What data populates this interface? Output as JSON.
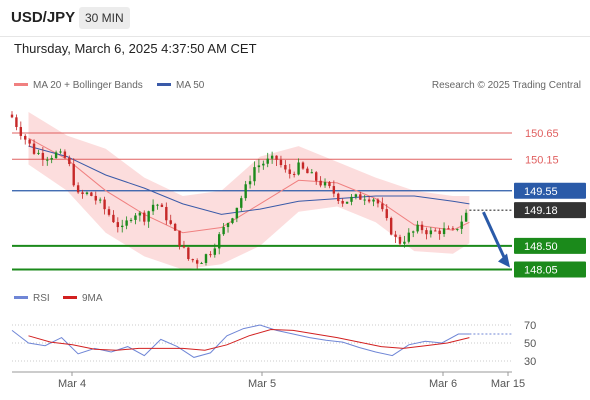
{
  "header": {
    "symbol": "USD/JPY",
    "timeframe": "30 MIN"
  },
  "timestamp": "Thursday, March 6, 2025 4:37:50 AM CET",
  "legend": {
    "ma20_label": "MA 20 + Bollinger Bands",
    "ma50_label": "MA 50",
    "credit": "Research © 2025 Trading Central",
    "rsi_label": "RSI",
    "rsi_ma_label": "9MA"
  },
  "colors": {
    "ma20": "#f08080",
    "ma50": "#3a5aa8",
    "band_fill": "#fbd5d5",
    "resistance": "#e06060",
    "support": "#1b8a1b",
    "pivot": "#2a5aa8",
    "last": "#333333",
    "rsi": "#6f86d6",
    "rsi_ma": "#d22020",
    "candle_up": "#1b8a1b",
    "candle_down": "#c62828"
  },
  "chart_data": [
    {
      "type": "candlestick",
      "title": "USD/JPY 30 MIN",
      "x_ticks": [
        "Mar 4",
        "Mar 5",
        "Mar 6",
        "Mar 15"
      ],
      "y_range": [
        147.85,
        151.05
      ],
      "levels": [
        {
          "value": 150.65,
          "label": "150.65",
          "kind": "resistance"
        },
        {
          "value": 150.15,
          "label": "150.15",
          "kind": "resistance"
        },
        {
          "value": 149.55,
          "label": "149.55",
          "kind": "pivot"
        },
        {
          "value": 149.18,
          "label": "149.18",
          "kind": "last"
        },
        {
          "value": 148.5,
          "label": "148.50",
          "kind": "support"
        },
        {
          "value": 148.05,
          "label": "148.05",
          "kind": "support"
        }
      ],
      "close_path": [
        [
          0,
          150.95
        ],
        [
          4,
          150.6
        ],
        [
          8,
          150.3
        ],
        [
          12,
          150.2
        ],
        [
          16,
          150.25
        ],
        [
          20,
          150.15
        ],
        [
          24,
          149.45
        ],
        [
          28,
          149.5
        ],
        [
          32,
          149.3
        ],
        [
          36,
          149.05
        ],
        [
          40,
          148.8
        ],
        [
          44,
          149.15
        ],
        [
          48,
          149.05
        ],
        [
          52,
          149.35
        ],
        [
          56,
          149.05
        ],
        [
          60,
          148.65
        ],
        [
          64,
          148.25
        ],
        [
          68,
          148.2
        ],
        [
          72,
          148.4
        ],
        [
          76,
          148.75
        ],
        [
          80,
          149.1
        ],
        [
          84,
          149.5
        ],
        [
          88,
          150.0
        ],
        [
          92,
          150.1
        ],
        [
          96,
          150.15
        ],
        [
          100,
          149.85
        ],
        [
          104,
          150.0
        ],
        [
          108,
          149.85
        ],
        [
          112,
          149.7
        ],
        [
          116,
          149.55
        ],
        [
          120,
          149.35
        ],
        [
          124,
          149.4
        ],
        [
          128,
          149.45
        ],
        [
          132,
          149.4
        ],
        [
          136,
          148.95
        ],
        [
          140,
          148.55
        ],
        [
          144,
          148.7
        ],
        [
          148,
          148.85
        ],
        [
          152,
          148.75
        ],
        [
          156,
          148.8
        ],
        [
          160,
          148.75
        ],
        [
          164,
          149.05
        ],
        [
          166,
          149.2
        ]
      ],
      "ma20_path": [
        [
          6,
          150.55
        ],
        [
          20,
          150.15
        ],
        [
          34,
          149.55
        ],
        [
          48,
          149.1
        ],
        [
          62,
          148.75
        ],
        [
          76,
          148.85
        ],
        [
          90,
          149.3
        ],
        [
          104,
          149.75
        ],
        [
          118,
          149.7
        ],
        [
          132,
          149.4
        ],
        [
          146,
          148.9
        ],
        [
          160,
          148.8
        ],
        [
          166,
          148.95
        ]
      ],
      "bollinger_upper": [
        [
          6,
          151.05
        ],
        [
          20,
          150.6
        ],
        [
          34,
          150.35
        ],
        [
          48,
          149.8
        ],
        [
          62,
          149.45
        ],
        [
          76,
          149.55
        ],
        [
          90,
          150.2
        ],
        [
          104,
          150.4
        ],
        [
          118,
          150.1
        ],
        [
          132,
          149.8
        ],
        [
          146,
          149.55
        ],
        [
          160,
          149.45
        ],
        [
          166,
          149.45
        ]
      ],
      "bollinger_lower": [
        [
          6,
          150.05
        ],
        [
          20,
          149.55
        ],
        [
          34,
          148.75
        ],
        [
          48,
          148.3
        ],
        [
          62,
          148.05
        ],
        [
          76,
          148.15
        ],
        [
          90,
          148.5
        ],
        [
          104,
          149.15
        ],
        [
          118,
          149.25
        ],
        [
          132,
          148.95
        ],
        [
          146,
          148.4
        ],
        [
          160,
          148.35
        ],
        [
          166,
          148.55
        ]
      ],
      "ma50_path": [
        [
          6,
          150.4
        ],
        [
          20,
          150.2
        ],
        [
          34,
          149.85
        ],
        [
          48,
          149.6
        ],
        [
          62,
          149.3
        ],
        [
          76,
          149.1
        ],
        [
          90,
          149.2
        ],
        [
          104,
          149.35
        ],
        [
          118,
          149.4
        ],
        [
          132,
          149.45
        ],
        [
          146,
          149.45
        ],
        [
          160,
          149.35
        ],
        [
          166,
          149.3
        ]
      ],
      "projection": [
        [
          166,
          149.18
        ],
        [
          180,
          148.05
        ]
      ]
    },
    {
      "type": "line",
      "title": "RSI",
      "y_range": [
        20,
        80
      ],
      "y_ticks": [
        70,
        50,
        30
      ],
      "series": [
        {
          "name": "RSI",
          "values": [
            [
              0,
              64
            ],
            [
              6,
              50
            ],
            [
              12,
              47
            ],
            [
              18,
              56
            ],
            [
              24,
              38
            ],
            [
              30,
              44
            ],
            [
              36,
              40
            ],
            [
              42,
              46
            ],
            [
              48,
              36
            ],
            [
              54,
              54
            ],
            [
              60,
              46
            ],
            [
              66,
              34
            ],
            [
              72,
              39
            ],
            [
              78,
              58
            ],
            [
              84,
              66
            ],
            [
              90,
              70
            ],
            [
              96,
              64
            ],
            [
              102,
              60
            ],
            [
              108,
              56
            ],
            [
              114,
              53
            ],
            [
              120,
              51
            ],
            [
              126,
              45
            ],
            [
              132,
              40
            ],
            [
              138,
              36
            ],
            [
              144,
              48
            ],
            [
              150,
              52
            ],
            [
              156,
              50
            ],
            [
              162,
              60
            ],
            [
              166,
              60
            ]
          ]
        },
        {
          "name": "9MA",
          "values": [
            [
              6,
              58
            ],
            [
              14,
              51
            ],
            [
              22,
              48
            ],
            [
              30,
              43
            ],
            [
              38,
              42
            ],
            [
              46,
              44
            ],
            [
              54,
              44
            ],
            [
              62,
              44
            ],
            [
              70,
              42
            ],
            [
              78,
              48
            ],
            [
              86,
              58
            ],
            [
              94,
              65
            ],
            [
              102,
              64
            ],
            [
              110,
              60
            ],
            [
              118,
              56
            ],
            [
              126,
              51
            ],
            [
              134,
              46
            ],
            [
              142,
              44
            ],
            [
              150,
              47
            ],
            [
              158,
              50
            ],
            [
              166,
              56
            ]
          ]
        }
      ]
    }
  ]
}
